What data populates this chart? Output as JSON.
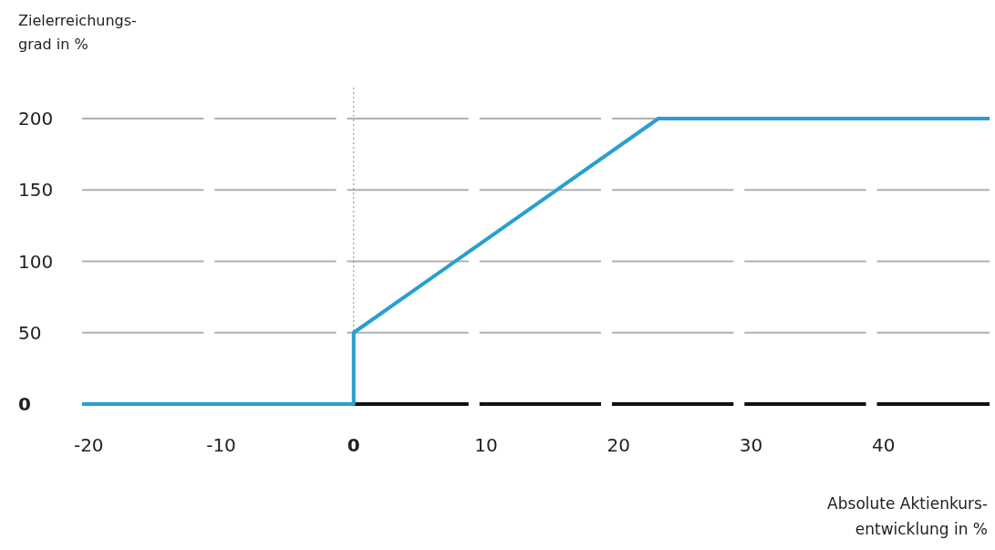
{
  "chart_data": {
    "type": "line",
    "ylabel": "Zielerreichungs-\ngrad in %",
    "xlabel": "Absolute Aktienkurs-\nentwicklung in %",
    "x": [
      -20.5,
      0,
      0,
      23,
      48
    ],
    "series": [
      {
        "color": "#2a9fd0",
        "values": [
          0,
          0,
          50,
          200,
          200
        ]
      }
    ],
    "xlim": [
      -20.5,
      48
    ],
    "ylim": [
      0,
      200
    ],
    "xticks": [
      -20,
      -10,
      0,
      10,
      20,
      30,
      40
    ],
    "yticks": [
      0,
      50,
      100,
      150,
      200
    ],
    "grid": "y",
    "marker": "none",
    "line_style": "solid",
    "ref_lines": [
      {
        "axis": "x",
        "value": 0,
        "color": "#888888",
        "line_style": "dotted"
      }
    ]
  }
}
